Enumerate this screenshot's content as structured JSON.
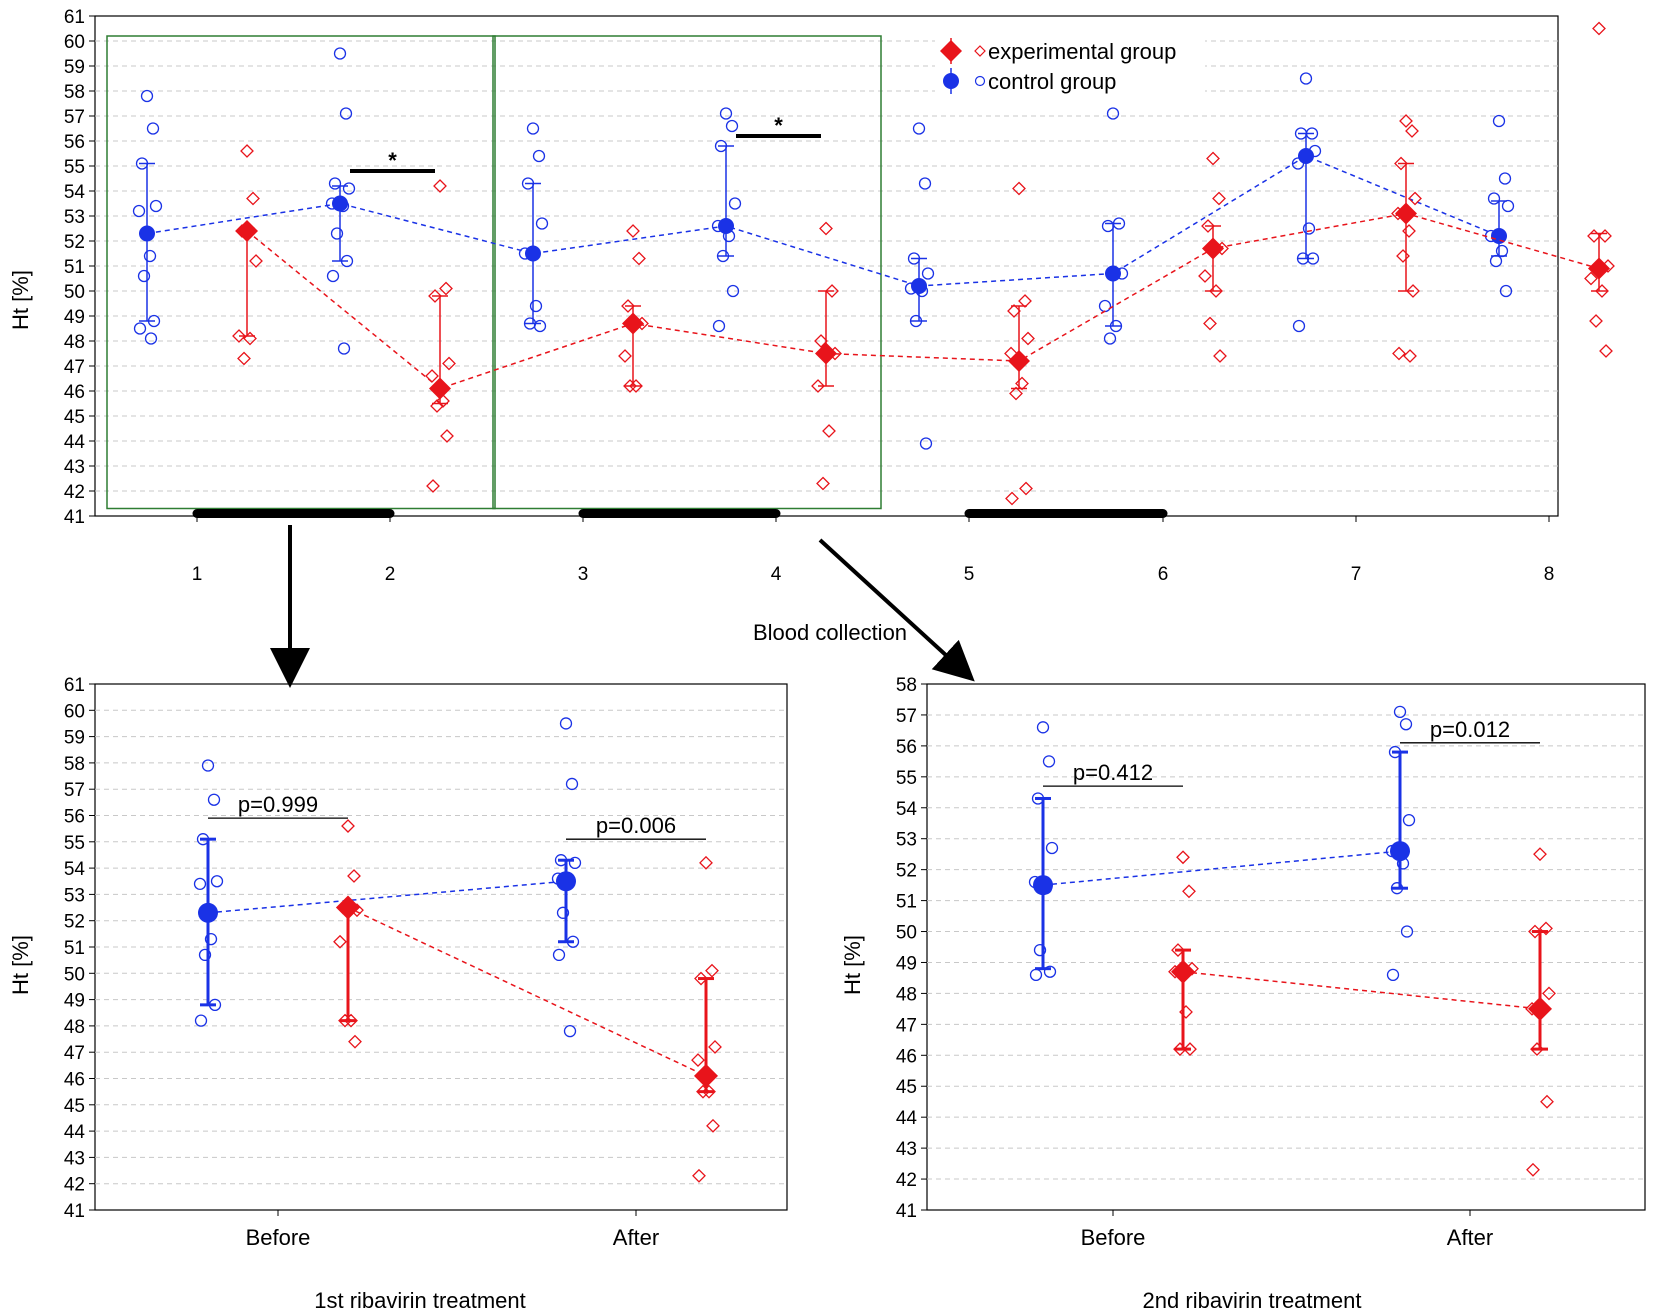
{
  "colors": {
    "experimental": "#e8141b",
    "control": "#1a32e6",
    "box": "#2e7d32",
    "grid": "#c8c8c8"
  },
  "legend": {
    "experimental": "experimental group",
    "control": "control group"
  },
  "chart_data": [
    {
      "type": "line",
      "title": "",
      "xlabel": "Blood collection",
      "ylabel": "Ht [%]",
      "ylim": [
        41,
        61
      ],
      "categories": [
        "1",
        "2",
        "3",
        "4",
        "5",
        "6",
        "7",
        "8"
      ],
      "series": [
        {
          "name": "control group",
          "means": [
            52.3,
            53.5,
            51.5,
            52.6,
            50.2,
            50.7,
            55.4,
            52.2
          ],
          "err_low": [
            48.8,
            51.2,
            48.7,
            51.4,
            48.8,
            48.6,
            51.3,
            51.4
          ],
          "err_high": [
            55.1,
            54.2,
            54.3,
            55.8,
            51.3,
            52.7,
            56.3,
            53.6
          ],
          "points": [
            [
              57.8,
              56.5,
              55.1,
              53.4,
              53.2,
              51.4,
              50.6,
              48.8,
              48.5,
              48.1
            ],
            [
              59.5,
              57.1,
              54.3,
              54.1,
              53.5,
              53.4,
              52.3,
              51.2,
              50.6,
              47.7
            ],
            [
              56.5,
              55.4,
              54.3,
              52.7,
              51.5,
              49.4,
              48.7,
              48.6
            ],
            [
              57.1,
              56.6,
              55.8,
              53.5,
              52.6,
              52.2,
              51.4,
              50.0,
              48.6
            ],
            [
              56.5,
              54.3,
              51.3,
              50.7,
              50.1,
              50.0,
              48.8,
              43.9
            ],
            [
              57.1,
              52.7,
              52.6,
              50.7,
              49.4,
              48.6,
              48.1
            ],
            [
              58.5,
              56.3,
              56.3,
              55.6,
              55.1,
              52.5,
              51.3,
              51.3,
              48.6
            ],
            [
              56.8,
              54.5,
              53.7,
              53.4,
              52.2,
              51.6,
              51.2,
              50.0
            ]
          ]
        },
        {
          "name": "experimental group",
          "means": [
            52.4,
            46.1,
            48.7,
            47.5,
            47.2,
            51.7,
            53.1,
            50.9
          ],
          "err_low": [
            48.2,
            45.5,
            46.2,
            46.2,
            46.1,
            50.0,
            50.0,
            50.0
          ],
          "err_high": [
            52.5,
            49.8,
            49.4,
            50.0,
            49.4,
            52.6,
            55.1,
            52.3
          ],
          "points": [
            [
              55.6,
              53.7,
              52.4,
              51.2,
              48.2,
              48.1,
              47.3
            ],
            [
              54.2,
              50.1,
              49.8,
              47.1,
              46.6,
              45.6,
              45.4,
              44.2,
              42.2
            ],
            [
              52.4,
              51.3,
              49.4,
              48.7,
              47.4,
              46.2,
              46.2
            ],
            [
              52.5,
              50.0,
              48.0,
              47.5,
              46.2,
              44.4,
              42.3
            ],
            [
              54.1,
              49.6,
              49.2,
              48.1,
              47.5,
              46.3,
              45.9,
              42.1,
              41.7
            ],
            [
              55.3,
              53.7,
              52.6,
              51.7,
              50.6,
              50.0,
              48.7,
              47.4
            ],
            [
              56.8,
              56.4,
              55.1,
              53.7,
              53.1,
              52.4,
              51.4,
              50.0,
              47.5,
              47.4
            ],
            [
              60.5,
              52.2,
              52.2,
              51.0,
              50.5,
              50.0,
              48.8,
              47.6
            ]
          ]
        }
      ],
      "significance": [
        {
          "between": "2",
          "text": "*",
          "y": 54.8
        },
        {
          "between": "4",
          "text": "*",
          "y": 56.2
        }
      ],
      "highlight_boxes": [
        [
          "1",
          "2"
        ],
        [
          "3",
          "4"
        ]
      ],
      "baseline_bars": [
        [
          "1",
          "2"
        ],
        [
          "3",
          "4"
        ],
        [
          "5",
          "6"
        ]
      ]
    },
    {
      "type": "line",
      "title": "1st ribavirin treatment",
      "xlabel": "1st ribavirin treatment",
      "ylabel": "Ht [%]",
      "ylim": [
        41,
        61
      ],
      "categories": [
        "Before",
        "After"
      ],
      "series": [
        {
          "name": "control group",
          "means": [
            52.3,
            53.5
          ],
          "err_low": [
            48.8,
            51.2
          ],
          "err_high": [
            55.1,
            54.3
          ],
          "points": [
            [
              57.9,
              56.6,
              55.1,
              53.5,
              53.4,
              51.3,
              50.7,
              48.8,
              48.2
            ],
            [
              59.5,
              57.2,
              54.3,
              54.2,
              53.6,
              53.5,
              52.3,
              51.2,
              50.7,
              47.8
            ]
          ]
        },
        {
          "name": "experimental group",
          "means": [
            52.5,
            46.1
          ],
          "err_low": [
            48.2,
            45.5
          ],
          "err_high": [
            52.5,
            49.8
          ],
          "points": [
            [
              55.6,
              53.7,
              52.5,
              52.4,
              51.2,
              48.2,
              48.2,
              47.4
            ],
            [
              54.2,
              50.1,
              49.8,
              47.2,
              46.7,
              45.5,
              45.5,
              44.2,
              42.3
            ]
          ]
        }
      ],
      "p_values": [
        {
          "category": "Before",
          "text": "p=0.999",
          "y": 55.9
        },
        {
          "category": "After",
          "text": "p=0.006",
          "y": 55.1
        }
      ]
    },
    {
      "type": "line",
      "title": "2nd ribavirin treatment",
      "xlabel": "2nd ribavirin treatment",
      "ylabel": "Ht [%]",
      "ylim": [
        41,
        58
      ],
      "categories": [
        "Before",
        "After"
      ],
      "series": [
        {
          "name": "control group",
          "means": [
            51.5,
            52.6
          ],
          "err_low": [
            48.8,
            51.4
          ],
          "err_high": [
            54.3,
            55.8
          ],
          "points": [
            [
              56.6,
              55.5,
              54.3,
              52.7,
              51.6,
              51.4,
              49.4,
              48.7,
              48.6
            ],
            [
              57.1,
              56.7,
              55.8,
              53.6,
              52.6,
              52.2,
              51.4,
              50.0,
              48.6
            ]
          ]
        },
        {
          "name": "experimental group",
          "means": [
            48.7,
            47.5
          ],
          "err_low": [
            46.2,
            46.2
          ],
          "err_high": [
            49.4,
            50.0
          ],
          "points": [
            [
              52.4,
              51.3,
              49.4,
              48.8,
              48.7,
              47.4,
              46.2,
              46.2
            ],
            [
              52.5,
              50.1,
              50.0,
              48.0,
              47.5,
              47.5,
              46.2,
              44.5,
              42.3
            ]
          ]
        }
      ],
      "p_values": [
        {
          "category": "Before",
          "text": "p=0.412",
          "y": 54.7
        },
        {
          "category": "After",
          "text": "p=0.012",
          "y": 56.1
        }
      ]
    }
  ]
}
